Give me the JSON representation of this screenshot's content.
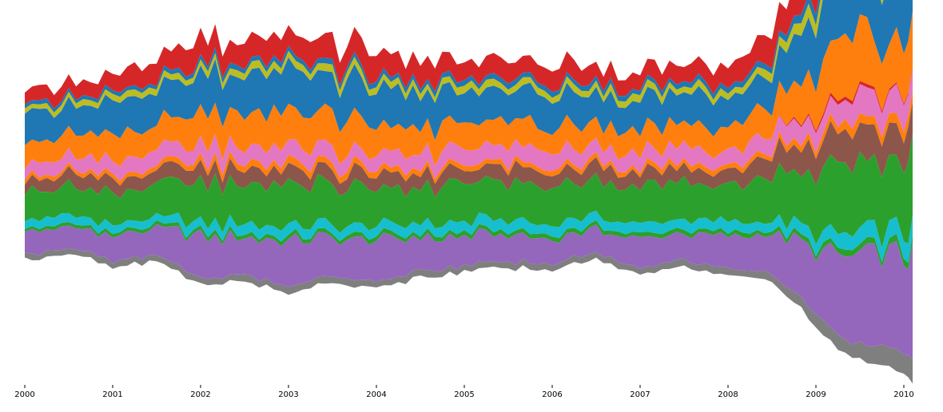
{
  "chart_data": {
    "type": "area",
    "subtype": "streamgraph",
    "title": "",
    "xlabel": "",
    "ylabel": "",
    "x_axis": {
      "ticks": [
        2000,
        2001,
        2002,
        2003,
        2004,
        2005,
        2006,
        2007,
        2008,
        2009,
        2010
      ],
      "tick_labels": [
        "2000",
        "2001",
        "2002",
        "2003",
        "2004",
        "2005",
        "2006",
        "2007",
        "2008",
        "2009",
        "2010"
      ],
      "range": [
        2000,
        2010.1
      ]
    },
    "y_axis_visible": false,
    "grid": false,
    "legend": "none",
    "x": [
      2000.0,
      2000.5,
      2001.0,
      2001.5,
      2002.0,
      2002.5,
      2003.0,
      2003.5,
      2004.0,
      2004.5,
      2005.0,
      2005.5,
      2006.0,
      2006.5,
      2007.0,
      2007.5,
      2008.0,
      2008.25,
      2008.5,
      2008.75,
      2009.0,
      2009.25,
      2009.5,
      2009.75,
      2010.0,
      2010.1
    ],
    "baseline": [
      -0.6,
      -0.5,
      -0.7,
      -0.6,
      -0.9,
      -0.85,
      -1.0,
      -0.85,
      -0.95,
      -0.8,
      -0.75,
      -0.7,
      -0.7,
      -0.6,
      -0.75,
      -0.7,
      -0.75,
      -0.8,
      -0.9,
      -1.1,
      -1.4,
      -1.65,
      -1.8,
      -1.85,
      -1.95,
      -2.05
    ],
    "series": [
      {
        "color": "#7f7f7f",
        "values": [
          0.07,
          0.07,
          0.07,
          0.07,
          0.08,
          0.08,
          0.08,
          0.08,
          0.08,
          0.08,
          0.08,
          0.08,
          0.08,
          0.08,
          0.08,
          0.08,
          0.08,
          0.08,
          0.1,
          0.12,
          0.15,
          0.18,
          0.2,
          0.22,
          0.24,
          0.25
        ]
      },
      {
        "color": "#9467bd",
        "values": [
          0.28,
          0.25,
          0.3,
          0.32,
          0.5,
          0.45,
          0.55,
          0.45,
          0.5,
          0.4,
          0.35,
          0.32,
          0.3,
          0.28,
          0.35,
          0.32,
          0.38,
          0.42,
          0.5,
          0.62,
          0.75,
          0.95,
          1.05,
          1.1,
          1.15,
          1.2
        ]
      },
      {
        "color": "#2ca02c",
        "values": [
          0.04,
          0.04,
          0.04,
          0.04,
          0.05,
          0.05,
          0.05,
          0.05,
          0.05,
          0.05,
          0.05,
          0.05,
          0.05,
          0.05,
          0.05,
          0.05,
          0.05,
          0.05,
          0.05,
          0.05,
          0.06,
          0.07,
          0.08,
          0.08,
          0.08,
          0.08
        ]
      },
      {
        "color": "#17becf",
        "values": [
          0.1,
          0.1,
          0.1,
          0.1,
          0.12,
          0.12,
          0.12,
          0.12,
          0.12,
          0.12,
          0.12,
          0.12,
          0.12,
          0.12,
          0.12,
          0.12,
          0.12,
          0.12,
          0.12,
          0.13,
          0.15,
          0.18,
          0.2,
          0.2,
          0.22,
          0.22
        ]
      },
      {
        "color": "#2ca02c",
        "values": [
          0.35,
          0.35,
          0.38,
          0.4,
          0.45,
          0.48,
          0.5,
          0.48,
          0.45,
          0.45,
          0.45,
          0.45,
          0.45,
          0.45,
          0.45,
          0.45,
          0.45,
          0.48,
          0.55,
          0.62,
          0.7,
          0.75,
          0.8,
          0.82,
          0.85,
          0.85
        ]
      },
      {
        "color": "#8c564b",
        "values": [
          0.15,
          0.15,
          0.15,
          0.16,
          0.17,
          0.17,
          0.17,
          0.17,
          0.17,
          0.17,
          0.17,
          0.17,
          0.17,
          0.17,
          0.17,
          0.17,
          0.17,
          0.2,
          0.25,
          0.3,
          0.35,
          0.38,
          0.4,
          0.4,
          0.42,
          0.42
        ]
      },
      {
        "color": "#ff7f0e",
        "values": [
          0.05,
          0.05,
          0.05,
          0.05,
          0.08,
          0.08,
          0.08,
          0.08,
          0.07,
          0.06,
          0.06,
          0.06,
          0.06,
          0.06,
          0.06,
          0.06,
          0.06,
          0.06,
          0.06,
          0.07,
          0.08,
          0.1,
          0.12,
          0.12,
          0.12,
          0.12
        ]
      },
      {
        "color": "#e377c2",
        "values": [
          0.15,
          0.16,
          0.17,
          0.18,
          0.2,
          0.2,
          0.2,
          0.2,
          0.18,
          0.18,
          0.2,
          0.2,
          0.2,
          0.2,
          0.18,
          0.18,
          0.18,
          0.2,
          0.22,
          0.22,
          0.22,
          0.25,
          0.3,
          0.3,
          0.3,
          0.3
        ]
      },
      {
        "color": "#d62728",
        "values": [
          0.0,
          0.0,
          0.0,
          0.0,
          0.0,
          0.0,
          0.0,
          0.0,
          0.0,
          0.0,
          0.0,
          0.0,
          0.0,
          0.0,
          0.0,
          0.0,
          0.0,
          0.0,
          0.0,
          0.02,
          0.03,
          0.04,
          0.04,
          0.03,
          0.02,
          0.02
        ]
      },
      {
        "color": "#ff7f0e",
        "values": [
          0.25,
          0.28,
          0.3,
          0.32,
          0.38,
          0.4,
          0.4,
          0.4,
          0.32,
          0.32,
          0.3,
          0.3,
          0.28,
          0.27,
          0.27,
          0.27,
          0.3,
          0.32,
          0.33,
          0.38,
          0.55,
          0.7,
          0.72,
          0.62,
          0.62,
          0.62
        ]
      },
      {
        "color": "#1f77b4",
        "values": [
          0.35,
          0.32,
          0.38,
          0.4,
          0.45,
          0.45,
          0.48,
          0.45,
          0.45,
          0.4,
          0.38,
          0.36,
          0.36,
          0.36,
          0.35,
          0.36,
          0.38,
          0.42,
          0.45,
          0.55,
          0.65,
          0.7,
          0.72,
          0.72,
          0.72,
          0.72
        ]
      },
      {
        "color": "#bcbd22",
        "values": [
          0.06,
          0.06,
          0.07,
          0.07,
          0.08,
          0.08,
          0.08,
          0.08,
          0.08,
          0.08,
          0.08,
          0.08,
          0.08,
          0.08,
          0.08,
          0.08,
          0.08,
          0.08,
          0.1,
          0.12,
          0.15,
          0.17,
          0.18,
          0.2,
          0.2,
          0.2
        ]
      },
      {
        "color": "#1f77b4",
        "values": [
          0.05,
          0.05,
          0.05,
          0.05,
          0.06,
          0.06,
          0.06,
          0.06,
          0.06,
          0.06,
          0.06,
          0.06,
          0.06,
          0.06,
          0.06,
          0.06,
          0.06,
          0.07,
          0.08,
          0.1,
          0.12,
          0.13,
          0.13,
          0.14,
          0.14,
          0.14
        ]
      },
      {
        "color": "#d62728",
        "values": [
          0.15,
          0.18,
          0.22,
          0.25,
          0.3,
          0.28,
          0.3,
          0.28,
          0.3,
          0.25,
          0.22,
          0.22,
          0.22,
          0.2,
          0.22,
          0.2,
          0.25,
          0.28,
          0.32,
          0.38,
          0.45,
          0.5,
          0.52,
          0.52,
          0.52,
          0.52
        ]
      }
    ],
    "y_range": [
      -2.1,
      2.45
    ]
  }
}
